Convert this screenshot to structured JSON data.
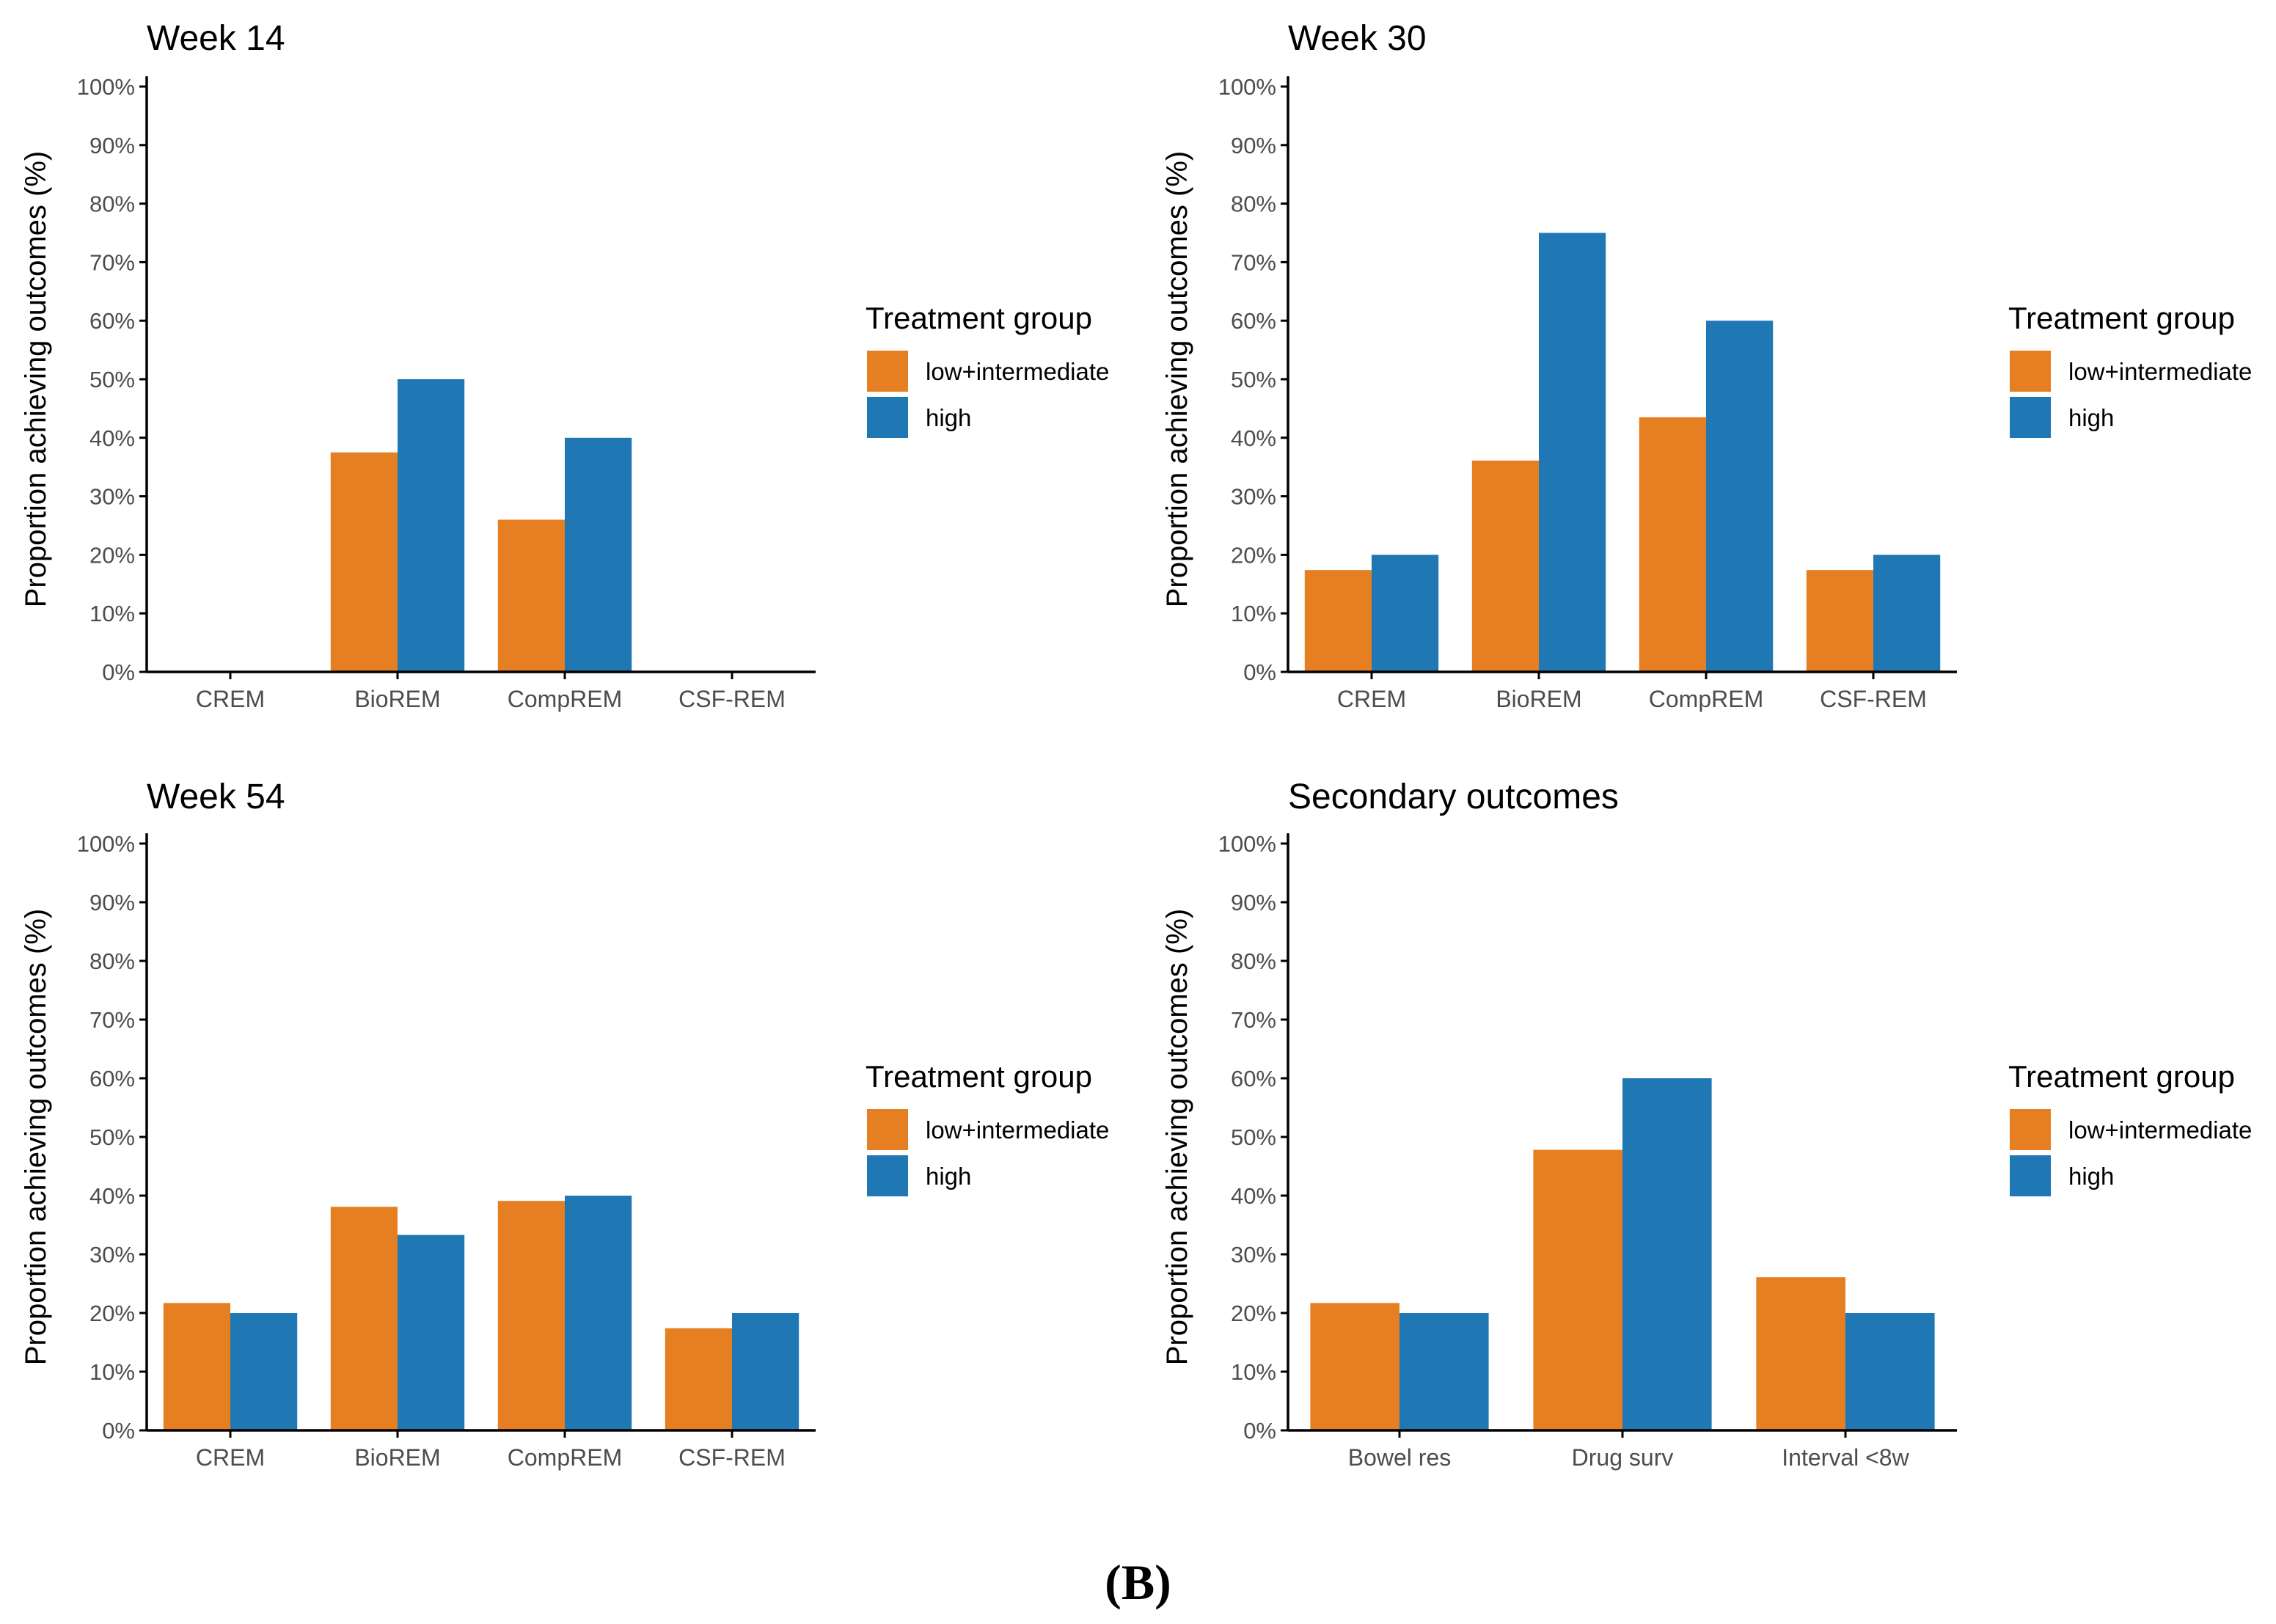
{
  "figure": {
    "caption": "(B)",
    "legend_title": "Treatment group",
    "colors": {
      "low_intermediate": "#E67E22",
      "high": "#1F77B4",
      "axis": "#000000",
      "tick_text": "#4D4D4D"
    }
  },
  "chart_data": [
    {
      "type": "bar",
      "title": "Week 14",
      "xlabel": "",
      "ylabel": "Proportion achieving outcomes (%)",
      "ylim": [
        0,
        100
      ],
      "yticks": [
        "0%",
        "10%",
        "20%",
        "30%",
        "40%",
        "50%",
        "60%",
        "70%",
        "80%",
        "90%",
        "100%"
      ],
      "categories": [
        "CREM",
        "BioREM",
        "CompREM",
        "CSF-REM"
      ],
      "series": [
        {
          "name": "low+intermediate",
          "values": [
            0,
            37.5,
            26,
            0
          ]
        },
        {
          "name": "high",
          "values": [
            0,
            50,
            40,
            0
          ]
        }
      ],
      "legend": {
        "title": "Treatment group",
        "position": "right"
      },
      "grid": false
    },
    {
      "type": "bar",
      "title": "Week 30",
      "xlabel": "",
      "ylabel": "Proportion achieving outcomes (%)",
      "ylim": [
        0,
        100
      ],
      "yticks": [
        "0%",
        "10%",
        "20%",
        "30%",
        "40%",
        "50%",
        "60%",
        "70%",
        "80%",
        "90%",
        "100%"
      ],
      "categories": [
        "CREM",
        "BioREM",
        "CompREM",
        "CSF-REM"
      ],
      "series": [
        {
          "name": "low+intermediate",
          "values": [
            17.4,
            36.1,
            43.5,
            17.4
          ]
        },
        {
          "name": "high",
          "values": [
            20,
            75,
            60,
            20
          ]
        }
      ],
      "legend": {
        "title": "Treatment group",
        "position": "right"
      },
      "grid": false
    },
    {
      "type": "bar",
      "title": "Week 54",
      "xlabel": "",
      "ylabel": "Proportion achieving outcomes (%)",
      "ylim": [
        0,
        100
      ],
      "yticks": [
        "0%",
        "10%",
        "20%",
        "30%",
        "40%",
        "50%",
        "60%",
        "70%",
        "80%",
        "90%",
        "100%"
      ],
      "categories": [
        "CREM",
        "BioREM",
        "CompREM",
        "CSF-REM"
      ],
      "series": [
        {
          "name": "low+intermediate",
          "values": [
            21.7,
            38.1,
            39.1,
            17.4
          ]
        },
        {
          "name": "high",
          "values": [
            20,
            33.3,
            40,
            20
          ]
        }
      ],
      "legend": {
        "title": "Treatment group",
        "position": "right"
      },
      "grid": false
    },
    {
      "type": "bar",
      "title": "Secondary outcomes",
      "xlabel": "",
      "ylabel": "Proportion achieving outcomes (%)",
      "ylim": [
        0,
        100
      ],
      "yticks": [
        "0%",
        "10%",
        "20%",
        "30%",
        "40%",
        "50%",
        "60%",
        "70%",
        "80%",
        "90%",
        "100%"
      ],
      "categories": [
        "Bowel res",
        "Drug surv",
        "Interval <8w"
      ],
      "series": [
        {
          "name": "low+intermediate",
          "values": [
            21.7,
            47.8,
            26.1
          ]
        },
        {
          "name": "high",
          "values": [
            20,
            60,
            20
          ]
        }
      ],
      "legend": {
        "title": "Treatment group",
        "position": "right"
      },
      "grid": false
    }
  ]
}
